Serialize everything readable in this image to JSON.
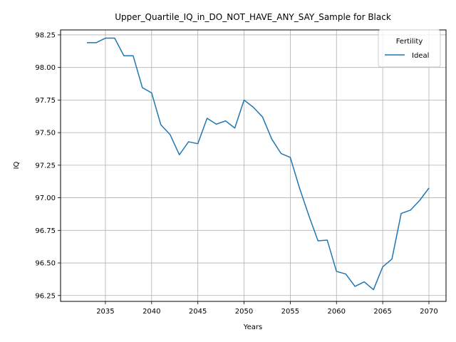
{
  "chart_data": {
    "type": "line",
    "title": "Upper_Quartile_IQ_in_DO_NOT_HAVE_ANY_SAY_Sample for Black",
    "xlabel": "Years",
    "ylabel": "IQ",
    "xlim": [
      2030.15,
      2071.85
    ],
    "ylim": [
      96.205,
      98.288
    ],
    "x_ticks": [
      2035,
      2040,
      2045,
      2050,
      2055,
      2060,
      2065,
      2070
    ],
    "y_ticks": [
      96.25,
      96.5,
      96.75,
      97.0,
      97.25,
      97.5,
      97.75,
      98.0,
      98.25
    ],
    "x_tick_labels": [
      "2035",
      "2040",
      "2045",
      "2050",
      "2055",
      "2060",
      "2065",
      "2070"
    ],
    "y_tick_labels": [
      "96.25",
      "96.50",
      "96.75",
      "97.00",
      "97.25",
      "97.50",
      "97.75",
      "98.00",
      "98.25"
    ],
    "grid": true,
    "legend": {
      "title": "Fertility",
      "placement": "top-right"
    },
    "series": [
      {
        "name": "Ideal",
        "color": "#1f77b4",
        "x": [
          2033,
          2034,
          2035,
          2036,
          2037,
          2038,
          2039,
          2040,
          2041,
          2042,
          2043,
          2044,
          2045,
          2046,
          2047,
          2048,
          2049,
          2050,
          2051,
          2052,
          2053,
          2054,
          2055,
          2056,
          2057,
          2058,
          2059,
          2060,
          2061,
          2062,
          2063,
          2064,
          2065,
          2066,
          2067,
          2068,
          2069,
          2070
        ],
        "values": [
          98.19,
          98.19,
          98.225,
          98.225,
          98.09,
          98.09,
          97.845,
          97.805,
          97.56,
          97.485,
          97.33,
          97.43,
          97.415,
          97.61,
          97.565,
          97.59,
          97.535,
          97.75,
          97.695,
          97.62,
          97.45,
          97.34,
          97.31,
          97.075,
          96.865,
          96.67,
          96.675,
          96.435,
          96.415,
          96.32,
          96.355,
          96.295,
          96.47,
          96.53,
          96.88,
          96.905,
          96.98,
          97.075
        ]
      }
    ]
  }
}
